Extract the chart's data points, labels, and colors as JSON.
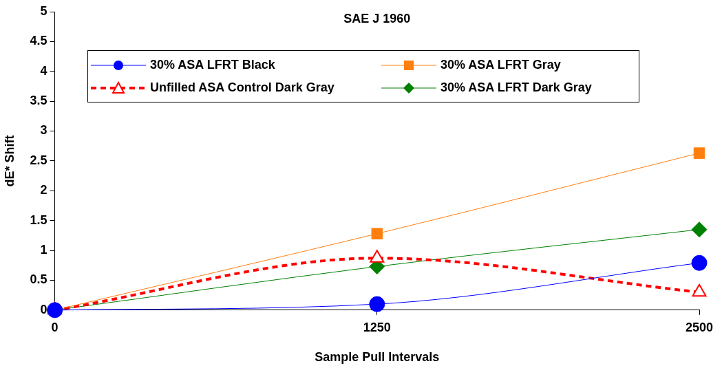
{
  "chart_data": {
    "type": "line",
    "title": "SAE J 1960",
    "xlabel": "Sample Pull Intervals",
    "ylabel": "dE* Shift",
    "x": [
      0,
      1250,
      2500
    ],
    "xlim": [
      0,
      2500
    ],
    "xticks": [
      0,
      1250,
      2500
    ],
    "ylim": [
      0,
      5
    ],
    "yticks": [
      0,
      0.5,
      1,
      1.5,
      2,
      2.5,
      3,
      3.5,
      4,
      4.5,
      5
    ],
    "grid": false,
    "legend": "top",
    "series": [
      {
        "name": "30% ASA LFRT Black",
        "color": "#0000ff",
        "values": [
          0,
          0.1,
          0.79
        ],
        "marker": "circle",
        "line_style": "solid"
      },
      {
        "name": "30% ASA LFRT Gray",
        "color": "#ff7f0e",
        "values": [
          0,
          1.28,
          2.63
        ],
        "marker": "square",
        "line_style": "solid"
      },
      {
        "name": "Unfilled ASA Control Dark Gray",
        "color": "#ff0000",
        "values": [
          0,
          0.87,
          0.3
        ],
        "marker": "triangle",
        "line_style": "dashed"
      },
      {
        "name": "30% ASA LFRT Dark Gray",
        "color": "#008000",
        "values": [
          0,
          0.73,
          1.35
        ],
        "marker": "diamond",
        "line_style": "solid"
      }
    ]
  }
}
